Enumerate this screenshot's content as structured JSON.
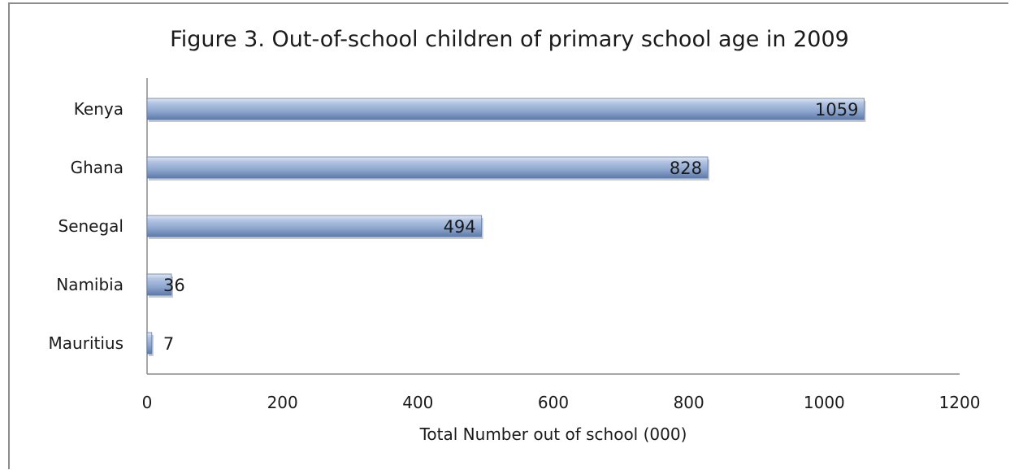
{
  "chart_data": {
    "type": "bar",
    "orientation": "horizontal",
    "title": "Figure 3.  Out-of-school children of primary school age in 2009",
    "xlabel": "Total Number out of school (000)",
    "ylabel": "",
    "categories": [
      "Kenya",
      "Ghana",
      "Senegal",
      "Namibia",
      "Mauritius"
    ],
    "values": [
      1059,
      828,
      494,
      36,
      7
    ],
    "data_labels": [
      "1059",
      "828",
      "494",
      "36",
      "7"
    ],
    "xlim": [
      0,
      1200
    ],
    "xticks": [
      0,
      200,
      400,
      600,
      800,
      1000,
      1200
    ],
    "xtick_labels": [
      "0",
      "200",
      "400",
      "600",
      "800",
      "1000",
      "1200"
    ],
    "grid": false,
    "legend": "none",
    "bar_color": "#8ea7cf"
  }
}
